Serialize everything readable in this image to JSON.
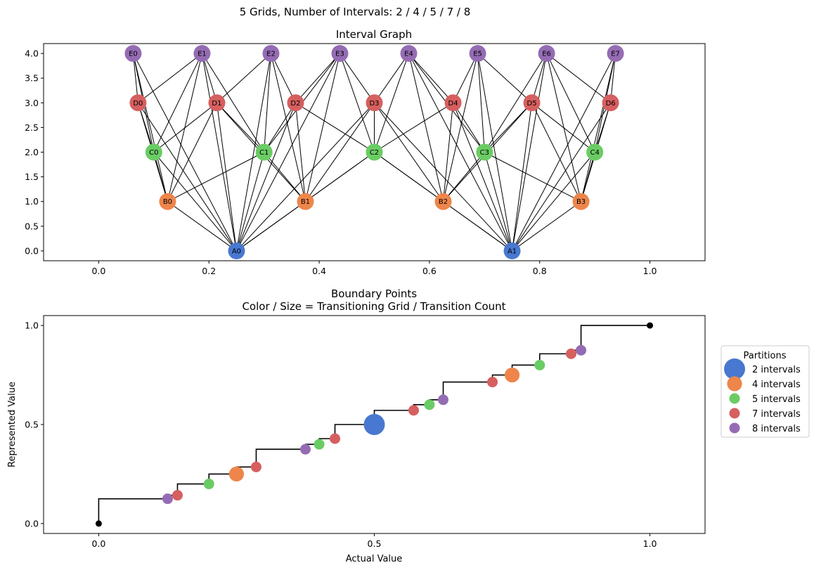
{
  "suptitle": "5 Grids, Number of Intervals: 2 / 4 / 5 / 7 / 8",
  "colors": {
    "2": "#4878d0",
    "4": "#ee854a",
    "5": "#6acc64",
    "7": "#d65f5f",
    "8": "#956cb4",
    "endpoint": "#000000",
    "edge": "#000000"
  },
  "chart_data": [
    {
      "type": "network",
      "title": "Interval Graph",
      "xlim": [
        -0.1,
        1.1
      ],
      "ylim": [
        -0.2,
        4.2
      ],
      "xticks": [
        0.0,
        0.2,
        0.4,
        0.6,
        0.8,
        1.0
      ],
      "xtick_labels": [
        "0.0",
        "0.2",
        "0.4",
        "0.6",
        "0.8",
        "1.0"
      ],
      "yticks": [
        0.0,
        0.5,
        1.0,
        1.5,
        2.0,
        2.5,
        3.0,
        3.5,
        4.0
      ],
      "ytick_labels": [
        "0.0",
        "0.5",
        "1.0",
        "1.5",
        "2.0",
        "2.5",
        "3.0",
        "3.5",
        "4.0"
      ],
      "levels": [
        {
          "prefix": "A",
          "intervals": 2,
          "y": 0
        },
        {
          "prefix": "B",
          "intervals": 4,
          "y": 1
        },
        {
          "prefix": "C",
          "intervals": 5,
          "y": 2
        },
        {
          "prefix": "D",
          "intervals": 7,
          "y": 3
        },
        {
          "prefix": "E",
          "intervals": 8,
          "y": 4
        }
      ],
      "nodes": [
        {
          "label": "A0",
          "x": 0.25,
          "y": 0,
          "group": "2"
        },
        {
          "label": "A1",
          "x": 0.75,
          "y": 0,
          "group": "2"
        },
        {
          "label": "B0",
          "x": 0.125,
          "y": 1,
          "group": "4"
        },
        {
          "label": "B1",
          "x": 0.375,
          "y": 1,
          "group": "4"
        },
        {
          "label": "B2",
          "x": 0.625,
          "y": 1,
          "group": "4"
        },
        {
          "label": "B3",
          "x": 0.875,
          "y": 1,
          "group": "4"
        },
        {
          "label": "C0",
          "x": 0.1,
          "y": 2,
          "group": "5"
        },
        {
          "label": "C1",
          "x": 0.3,
          "y": 2,
          "group": "5"
        },
        {
          "label": "C2",
          "x": 0.5,
          "y": 2,
          "group": "5"
        },
        {
          "label": "C3",
          "x": 0.7,
          "y": 2,
          "group": "5"
        },
        {
          "label": "C4",
          "x": 0.9,
          "y": 2,
          "group": "5"
        },
        {
          "label": "D0",
          "x": 0.0714,
          "y": 3,
          "group": "7"
        },
        {
          "label": "D1",
          "x": 0.2143,
          "y": 3,
          "group": "7"
        },
        {
          "label": "D2",
          "x": 0.3571,
          "y": 3,
          "group": "7"
        },
        {
          "label": "D3",
          "x": 0.5,
          "y": 3,
          "group": "7"
        },
        {
          "label": "D4",
          "x": 0.6429,
          "y": 3,
          "group": "7"
        },
        {
          "label": "D5",
          "x": 0.7857,
          "y": 3,
          "group": "7"
        },
        {
          "label": "D6",
          "x": 0.9286,
          "y": 3,
          "group": "7"
        },
        {
          "label": "E0",
          "x": 0.0625,
          "y": 4,
          "group": "8"
        },
        {
          "label": "E1",
          "x": 0.1875,
          "y": 4,
          "group": "8"
        },
        {
          "label": "E2",
          "x": 0.3125,
          "y": 4,
          "group": "8"
        },
        {
          "label": "E3",
          "x": 0.4375,
          "y": 4,
          "group": "8"
        },
        {
          "label": "E4",
          "x": 0.5625,
          "y": 4,
          "group": "8"
        },
        {
          "label": "E5",
          "x": 0.6875,
          "y": 4,
          "group": "8"
        },
        {
          "label": "E6",
          "x": 0.8125,
          "y": 4,
          "group": "8"
        },
        {
          "label": "E7",
          "x": 0.9375,
          "y": 4,
          "group": "8"
        }
      ],
      "edge_rule": "nodes on different levels are connected when their intervals overlap"
    },
    {
      "type": "scatter",
      "title": "Boundary Points\nColor / Size = Transitioning Grid / Transition Count",
      "title_lines": [
        "Boundary Points",
        "Color / Size = Transitioning Grid / Transition Count"
      ],
      "xlabel": "Actual Value",
      "ylabel": "Represented Value",
      "xlim": [
        -0.1,
        1.1
      ],
      "ylim": [
        -0.05,
        1.05
      ],
      "xticks": [
        0.0,
        0.5,
        1.0
      ],
      "xtick_labels": [
        "0.0",
        "0.5",
        "1.0"
      ],
      "yticks": [
        0.0,
        0.5,
        1.0
      ],
      "ytick_labels": [
        "0.0",
        "0.5",
        "1.0"
      ],
      "step_line": {
        "x": [
          0,
          0.125,
          0.1429,
          0.2,
          0.25,
          0.2857,
          0.375,
          0.4,
          0.4286,
          0.5,
          0.5714,
          0.6,
          0.625,
          0.7143,
          0.75,
          0.8,
          0.8571,
          0.875,
          1.0
        ],
        "y": [
          0,
          0.125,
          0.1429,
          0.2,
          0.25,
          0.2857,
          0.375,
          0.4,
          0.4286,
          0.5,
          0.5714,
          0.6,
          0.625,
          0.7143,
          0.75,
          0.8,
          0.8571,
          0.875,
          1.0
        ]
      },
      "endpoints": [
        {
          "x": 0,
          "y": 0
        },
        {
          "x": 1,
          "y": 1
        }
      ],
      "points": [
        {
          "x": 0.125,
          "y": 0.125,
          "grid": "8",
          "count": 1
        },
        {
          "x": 0.1429,
          "y": 0.1429,
          "grid": "7",
          "count": 1
        },
        {
          "x": 0.2,
          "y": 0.2,
          "grid": "5",
          "count": 1
        },
        {
          "x": 0.25,
          "y": 0.25,
          "grid": "4",
          "count": 2
        },
        {
          "x": 0.2857,
          "y": 0.2857,
          "grid": "7",
          "count": 1
        },
        {
          "x": 0.375,
          "y": 0.375,
          "grid": "8",
          "count": 1
        },
        {
          "x": 0.4,
          "y": 0.4,
          "grid": "5",
          "count": 1
        },
        {
          "x": 0.4286,
          "y": 0.4286,
          "grid": "7",
          "count": 1
        },
        {
          "x": 0.5,
          "y": 0.5,
          "grid": "2",
          "count": 4
        },
        {
          "x": 0.5714,
          "y": 0.5714,
          "grid": "7",
          "count": 1
        },
        {
          "x": 0.6,
          "y": 0.6,
          "grid": "5",
          "count": 1
        },
        {
          "x": 0.625,
          "y": 0.625,
          "grid": "8",
          "count": 1
        },
        {
          "x": 0.7143,
          "y": 0.7143,
          "grid": "7",
          "count": 1
        },
        {
          "x": 0.75,
          "y": 0.75,
          "grid": "4",
          "count": 2
        },
        {
          "x": 0.8,
          "y": 0.8,
          "grid": "5",
          "count": 1
        },
        {
          "x": 0.8571,
          "y": 0.8571,
          "grid": "7",
          "count": 1
        },
        {
          "x": 0.875,
          "y": 0.875,
          "grid": "8",
          "count": 1
        }
      ],
      "legend": {
        "title": "Partitions",
        "placement": "outside right",
        "entries": [
          {
            "label": "2 intervals",
            "grid": "2",
            "count": 4
          },
          {
            "label": "4 intervals",
            "grid": "4",
            "count": 2
          },
          {
            "label": "5 intervals",
            "grid": "5",
            "count": 1
          },
          {
            "label": "7 intervals",
            "grid": "7",
            "count": 1
          },
          {
            "label": "8 intervals",
            "grid": "8",
            "count": 1
          }
        ]
      }
    }
  ]
}
